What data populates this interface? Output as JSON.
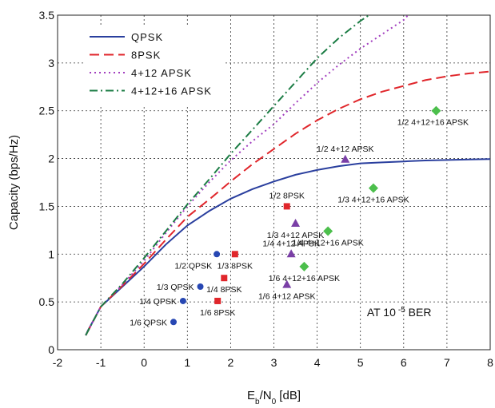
{
  "chart_data": {
    "type": "line",
    "xlabel": "E_b/N_0 [dB]",
    "ylabel": "Capacity (bps/Hz)",
    "xlim": [
      -2,
      8
    ],
    "ylim": [
      0,
      3.5
    ],
    "xticks": [
      "-2",
      "-1",
      "0",
      "1",
      "2",
      "3",
      "4",
      "5",
      "6",
      "7",
      "8"
    ],
    "yticks": [
      "0",
      "0.5",
      "1",
      "1.5",
      "2",
      "2.5",
      "3",
      "3.5"
    ],
    "grid": true,
    "legend_position": "top-left",
    "note": {
      "pre": "AT 10",
      "exp": "-5",
      "post": " BER"
    },
    "series": [
      {
        "name": "QPSK",
        "color": "#2a3f9e",
        "dash": "solid",
        "x": [
          -1.35,
          -1.3,
          -1,
          -0.5,
          0,
          0.5,
          1,
          1.5,
          2,
          2.5,
          3,
          3.5,
          4,
          4.5,
          5,
          5.5,
          6,
          6.5,
          7,
          7.5,
          8
        ],
        "y": [
          0.15,
          0.2,
          0.45,
          0.66,
          0.87,
          1.1,
          1.3,
          1.45,
          1.58,
          1.68,
          1.76,
          1.83,
          1.88,
          1.92,
          1.95,
          1.96,
          1.97,
          1.98,
          1.985,
          1.99,
          1.995
        ]
      },
      {
        "name": "8PSK",
        "color": "#e0262b",
        "dash": "long-dash",
        "x": [
          -1.35,
          -1,
          -0.5,
          0,
          0.5,
          1,
          1.5,
          2,
          2.5,
          3,
          3.5,
          4,
          4.5,
          5,
          5.5,
          6,
          6.5,
          7,
          7.5,
          8
        ],
        "y": [
          0.15,
          0.45,
          0.67,
          0.9,
          1.15,
          1.39,
          1.57,
          1.76,
          1.94,
          2.1,
          2.26,
          2.4,
          2.52,
          2.62,
          2.7,
          2.76,
          2.82,
          2.86,
          2.89,
          2.91
        ]
      },
      {
        "name": "4+12 APSK",
        "color": "#a23fbf",
        "dash": "dotted",
        "x": [
          -1.35,
          -1,
          -0.5,
          0,
          0.5,
          1,
          1.5,
          2,
          2.5,
          3,
          3.5,
          4,
          4.5,
          5,
          5.5,
          6,
          6.1
        ],
        "y": [
          0.15,
          0.45,
          0.68,
          0.93,
          1.22,
          1.5,
          1.75,
          1.98,
          2.18,
          2.36,
          2.58,
          2.79,
          2.98,
          3.15,
          3.3,
          3.45,
          3.5
        ]
      },
      {
        "name": "4+12+16 APSK",
        "color": "#1c7d45",
        "dash": "dash-dot",
        "x": [
          -1.35,
          -1,
          -0.5,
          0,
          0.5,
          1,
          1.5,
          2,
          2.5,
          3,
          3.5,
          4,
          4.5,
          5,
          5.2
        ],
        "y": [
          0.15,
          0.45,
          0.69,
          0.96,
          1.24,
          1.52,
          1.78,
          2.05,
          2.3,
          2.55,
          2.8,
          3.05,
          3.26,
          3.44,
          3.5
        ]
      }
    ],
    "points": [
      {
        "label": "1/6  QPSK",
        "x": 0.68,
        "y": 0.29,
        "marker": "circle",
        "color": "#2747b3",
        "anchor": "left"
      },
      {
        "label": "1/4  QPSK",
        "x": 0.9,
        "y": 0.51,
        "marker": "circle",
        "color": "#2747b3",
        "anchor": "left"
      },
      {
        "label": "1/3  QPSK",
        "x": 1.3,
        "y": 0.66,
        "marker": "circle",
        "color": "#2747b3",
        "anchor": "left"
      },
      {
        "label": "1/2  QPSK",
        "x": 1.68,
        "y": 1.0,
        "marker": "circle",
        "color": "#2747b3",
        "anchor": "left"
      },
      {
        "label": "1/6  8PSK",
        "x": 1.7,
        "y": 0.51,
        "marker": "square",
        "color": "#e0262b",
        "anchor": "below"
      },
      {
        "label": "1/4  8PSK",
        "x": 1.85,
        "y": 0.75,
        "marker": "square",
        "color": "#e0262b",
        "anchor": "below"
      },
      {
        "label": "1/3  8PSK",
        "x": 2.1,
        "y": 1.0,
        "marker": "square",
        "color": "#e0262b",
        "anchor": "below"
      },
      {
        "label": "1/2  8PSK",
        "x": 3.3,
        "y": 1.5,
        "marker": "square",
        "color": "#e0262b",
        "anchor": "above"
      },
      {
        "label": "1/6 4+12 APSK",
        "x": 3.3,
        "y": 0.68,
        "marker": "triangle",
        "color": "#7a3fa6",
        "anchor": "below"
      },
      {
        "label": "1/4 4+12 APSK",
        "x": 3.4,
        "y": 1.0,
        "marker": "triangle",
        "color": "#7a3fa6",
        "anchor": "above"
      },
      {
        "label": "1/3  4+12 APSK",
        "x": 3.5,
        "y": 1.32,
        "marker": "triangle",
        "color": "#7a3fa6",
        "anchor": "below"
      },
      {
        "label": "1/2  4+12 APSK",
        "x": 4.65,
        "y": 1.99,
        "marker": "triangle",
        "color": "#7a3fa6",
        "anchor": "above"
      },
      {
        "label": "1/6 4+12+16 APSK",
        "x": 3.7,
        "y": 0.87,
        "marker": "diamond",
        "color": "#4cbf4c",
        "anchor": "below"
      },
      {
        "label": "1/4  4+12+16 APSK",
        "x": 4.25,
        "y": 1.24,
        "marker": "diamond",
        "color": "#4cbf4c",
        "anchor": "below"
      },
      {
        "label": "1/3  4+12+16 APSK",
        "x": 5.3,
        "y": 1.69,
        "marker": "diamond",
        "color": "#4cbf4c",
        "anchor": "below"
      },
      {
        "label": "1/2  4+12+16 APSK",
        "x": 6.75,
        "y": 2.5,
        "marker": "diamond",
        "color": "#4cbf4c",
        "anchor": "below"
      }
    ]
  }
}
